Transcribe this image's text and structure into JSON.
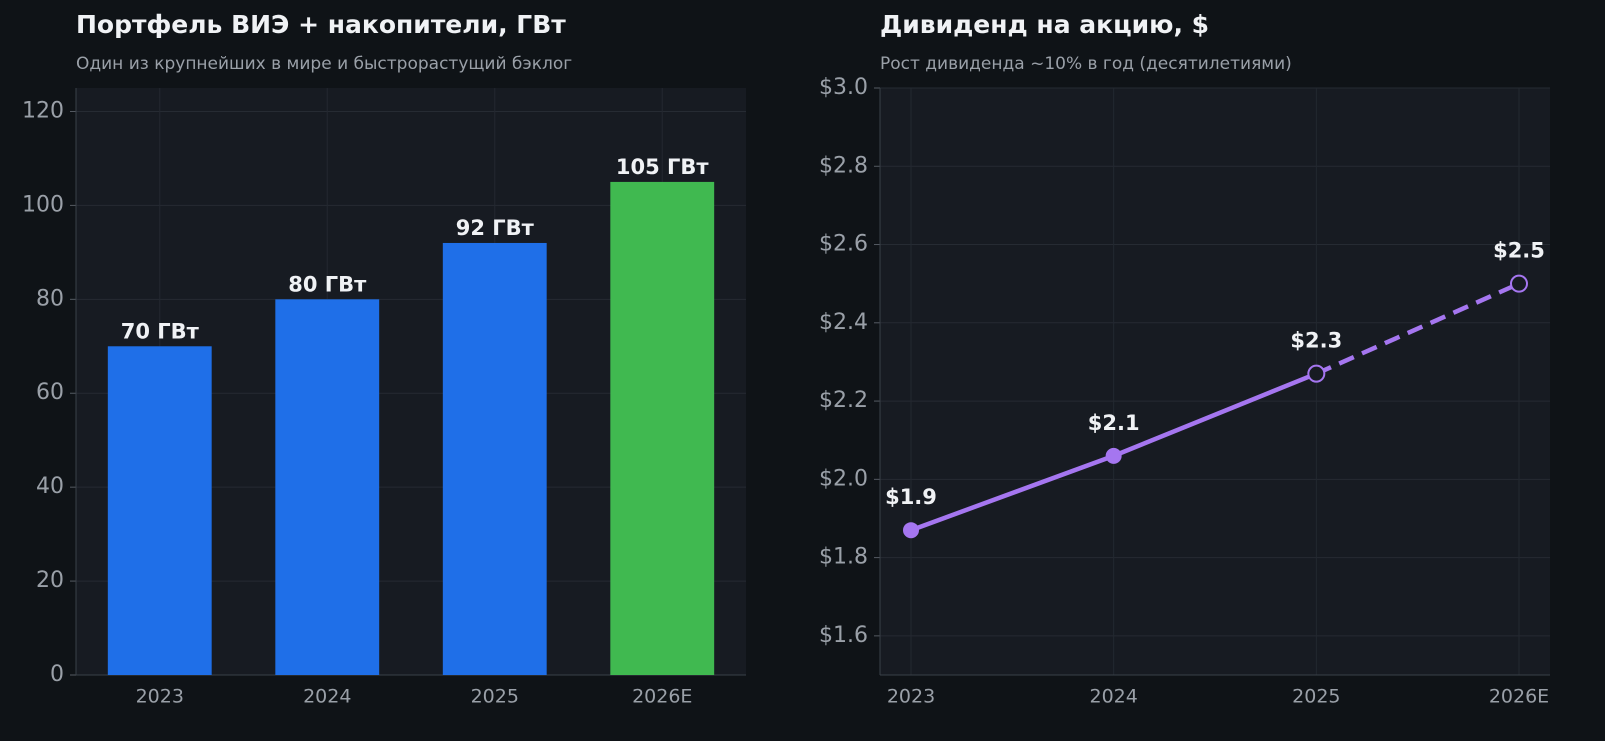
{
  "chart_data": [
    {
      "type": "bar",
      "title": "Портфель ВИЭ + накопители, ГВт",
      "subtitle": "Один из крупнейших в мире и быстрорастущий бэклог",
      "categories": [
        "2023",
        "2024",
        "2025",
        "2026E"
      ],
      "values": [
        70,
        80,
        92,
        105
      ],
      "value_labels": [
        "70 ГВт",
        "80 ГВт",
        "92 ГВт",
        "105 ГВт"
      ],
      "colors": [
        "#1f6fe8",
        "#1f6fe8",
        "#1f6fe8",
        "#40b950"
      ],
      "ylim": [
        0,
        125
      ],
      "yticks": [
        0,
        20,
        40,
        60,
        80,
        100,
        120
      ],
      "grid": true
    },
    {
      "type": "line",
      "title": "Дивиденд на акцию, $",
      "subtitle": "Рост дивиденда ~10% в год (десятилетиями)",
      "categories": [
        "2023",
        "2024",
        "2025",
        "2026E"
      ],
      "values": [
        1.87,
        2.06,
        2.27,
        2.5
      ],
      "value_labels": [
        "$1.9",
        "$2.1",
        "$2.3",
        "$2.5"
      ],
      "color": "#a576f0",
      "forecast_start": 2,
      "ylim": [
        1.5,
        3.0
      ],
      "yticks": [
        {
          "value": 1.6,
          "label": "$1.6"
        },
        {
          "value": 1.8,
          "label": "$1.8"
        },
        {
          "value": 2.0,
          "label": "$2.0"
        },
        {
          "value": 2.2,
          "label": "$2.2"
        },
        {
          "value": 2.4,
          "label": "$2.4"
        },
        {
          "value": 2.6,
          "label": "$2.6"
        },
        {
          "value": 2.8,
          "label": "$2.8"
        },
        {
          "value": 3.0,
          "label": "$3.0"
        }
      ],
      "grid": true
    }
  ]
}
